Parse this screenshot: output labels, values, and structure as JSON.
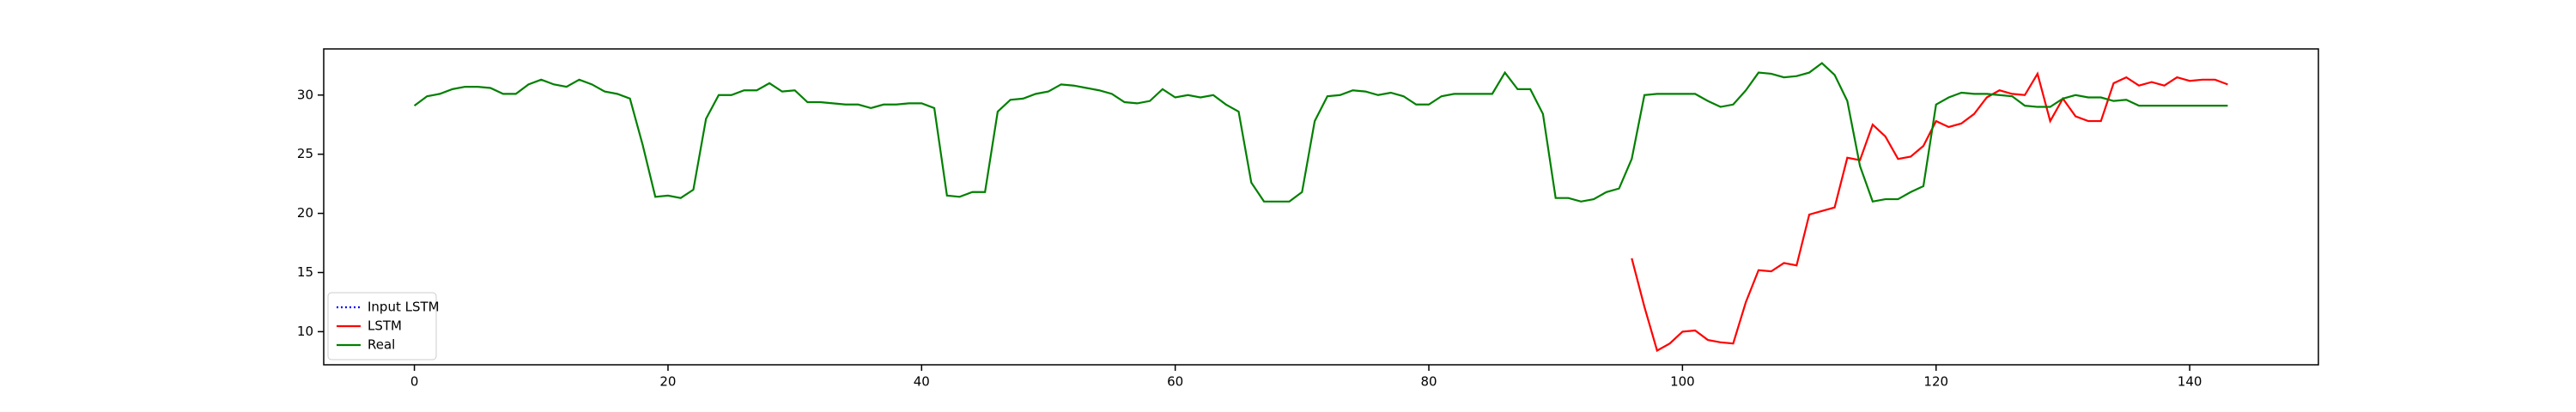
{
  "chart_data": {
    "type": "line",
    "xlim": [
      -7.15,
      150.15
    ],
    "xticks": [
      0,
      20,
      40,
      60,
      80,
      100,
      120,
      140
    ],
    "ylim": [
      7.2,
      33.9
    ],
    "yticks": [
      10,
      15,
      20,
      25,
      30
    ],
    "grid": false,
    "legend": "lower left",
    "series": [
      {
        "name": "Input LSTM",
        "color": "#0000ff",
        "dash": "dotted",
        "x": [],
        "values": []
      },
      {
        "name": "LSTM",
        "color": "#ff0000",
        "dash": "solid",
        "x": [
          96,
          97,
          98,
          99,
          100,
          101,
          102,
          103,
          104,
          105,
          106,
          107,
          108,
          109,
          110,
          111,
          112,
          113,
          114,
          115,
          116,
          117,
          118,
          119,
          120,
          121,
          122,
          123,
          124,
          125,
          126,
          127,
          128,
          129,
          130,
          131,
          132,
          133,
          134,
          135,
          136,
          137,
          138,
          139,
          140,
          141,
          142,
          143
        ],
        "values": [
          16.2,
          12.1,
          8.4,
          9.0,
          10.0,
          10.1,
          9.3,
          9.1,
          9.0,
          12.5,
          15.2,
          15.1,
          15.8,
          15.6,
          19.9,
          20.2,
          20.5,
          24.7,
          24.5,
          27.5,
          26.5,
          24.6,
          24.8,
          25.7,
          27.8,
          27.3,
          27.6,
          28.4,
          29.8,
          30.4,
          30.1,
          30.0,
          31.8,
          27.8,
          29.7,
          28.2,
          27.8,
          27.8,
          31.0,
          31.5,
          30.8,
          31.1,
          30.8,
          31.5,
          31.2,
          31.3,
          31.3,
          30.9
        ]
      },
      {
        "name": "Real",
        "color": "#008000",
        "dash": "solid",
        "x": [
          0,
          1,
          2,
          3,
          4,
          5,
          6,
          7,
          8,
          9,
          10,
          11,
          12,
          13,
          14,
          15,
          16,
          17,
          18,
          19,
          20,
          21,
          22,
          23,
          24,
          25,
          26,
          27,
          28,
          29,
          30,
          31,
          32,
          33,
          34,
          35,
          36,
          37,
          38,
          39,
          40,
          41,
          42,
          43,
          44,
          45,
          46,
          47,
          48,
          49,
          50,
          51,
          52,
          53,
          54,
          55,
          56,
          57,
          58,
          59,
          60,
          61,
          62,
          63,
          64,
          65,
          66,
          67,
          68,
          69,
          70,
          71,
          72,
          73,
          74,
          75,
          76,
          77,
          78,
          79,
          80,
          81,
          82,
          83,
          84,
          85,
          86,
          87,
          88,
          89,
          90,
          91,
          92,
          93,
          94,
          95,
          96,
          97,
          98,
          99,
          100,
          101,
          102,
          103,
          104,
          105,
          106,
          107,
          108,
          109,
          110,
          111,
          112,
          113,
          114,
          115,
          116,
          117,
          118,
          119,
          120,
          121,
          122,
          123,
          124,
          125,
          126,
          127,
          128,
          129,
          130,
          131,
          132,
          133,
          134,
          135,
          136,
          137,
          138,
          139,
          140,
          141,
          142,
          143
        ],
        "values": [
          29.1,
          29.9,
          30.1,
          30.5,
          30.7,
          30.7,
          30.6,
          30.1,
          30.1,
          30.9,
          31.3,
          30.9,
          30.7,
          31.3,
          30.9,
          30.3,
          30.1,
          29.7,
          25.8,
          21.4,
          21.5,
          21.3,
          22.0,
          28.0,
          30.0,
          30.0,
          30.4,
          30.4,
          31.0,
          30.3,
          30.4,
          29.4,
          29.4,
          29.3,
          29.2,
          29.2,
          28.9,
          29.2,
          29.2,
          29.3,
          29.3,
          28.9,
          21.5,
          21.4,
          21.8,
          21.8,
          28.6,
          29.6,
          29.7,
          30.1,
          30.3,
          30.9,
          30.8,
          30.6,
          30.4,
          30.1,
          29.4,
          29.3,
          29.5,
          30.5,
          29.8,
          30.0,
          29.8,
          30.0,
          29.2,
          28.6,
          22.6,
          21.0,
          21.0,
          21.0,
          21.8,
          27.8,
          29.9,
          30.0,
          30.4,
          30.3,
          30.0,
          30.2,
          29.9,
          29.2,
          29.2,
          29.9,
          30.1,
          30.1,
          30.1,
          30.1,
          31.9,
          30.5,
          30.5,
          28.4,
          21.3,
          21.3,
          21.0,
          21.2,
          21.8,
          22.1,
          24.6,
          30.0,
          30.1,
          30.1,
          30.1,
          30.1,
          29.5,
          29.0,
          29.2,
          30.4,
          31.9,
          31.8,
          31.5,
          31.6,
          31.9,
          32.7,
          31.7,
          29.5,
          24.0,
          21.0,
          21.2,
          21.2,
          21.8,
          22.3,
          29.2,
          29.8,
          30.2,
          30.1,
          30.1,
          30.0,
          29.9,
          29.1,
          29.0,
          29.0,
          29.7,
          30.0,
          29.8,
          29.8,
          29.5,
          29.6,
          29.1,
          29.1,
          29.1,
          29.1,
          29.1,
          29.1,
          29.1,
          29.1
        ]
      }
    ]
  }
}
